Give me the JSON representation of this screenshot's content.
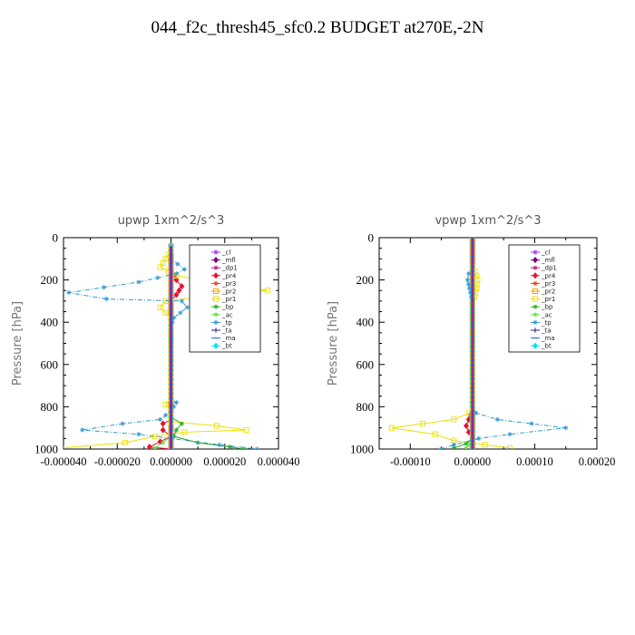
{
  "title": "044_f2c_thresh45_sfc0.2  BUDGET at270E,-2N",
  "chart_data": [
    {
      "type": "line",
      "title": "upwp   1xm^2/s^3",
      "ylabel": "Pressure [hPa]",
      "xlabel": "",
      "ylim": [
        1000,
        0
      ],
      "xlim": [
        -4e-05,
        4e-05
      ],
      "yticks": [
        "0",
        "200",
        "400",
        "600",
        "800",
        "1000"
      ],
      "ytick_values": [
        0,
        200,
        400,
        600,
        800,
        1000
      ],
      "xticks": [
        "-0.000040",
        "-0.000020",
        "0.000000",
        "0.000020",
        "0.000040"
      ],
      "xtick_values": [
        -4e-05,
        -2e-05,
        0,
        2e-05,
        4e-05
      ],
      "legend_position": "top-right",
      "series": [
        {
          "name": "_cl",
          "color": "#9b30ff",
          "marker": "star",
          "points": [
            [
              0,
              40
            ],
            [
              0,
              1000
            ]
          ]
        },
        {
          "name": "_mfl",
          "color": "#800080",
          "marker": "diamond",
          "points": [
            [
              0,
              40
            ],
            [
              0,
              1000
            ]
          ]
        },
        {
          "name": "_dp1",
          "color": "#c71585",
          "marker": "star",
          "points": [
            [
              0,
              100
            ],
            [
              0,
              900
            ]
          ]
        },
        {
          "name": "_pr4",
          "color": "#e8112d",
          "marker": "diamond",
          "points": [
            [
              0,
              160
            ],
            [
              2e-06,
              200
            ],
            [
              4e-06,
              230
            ],
            [
              2e-06,
              270
            ],
            [
              0,
              300
            ],
            [
              0,
              860
            ],
            [
              -3e-06,
              880
            ],
            [
              -3e-06,
              910
            ],
            [
              0,
              940
            ],
            [
              -8e-06,
              990
            ],
            [
              0,
              1000
            ]
          ]
        },
        {
          "name": "_pr3",
          "color": "#ff3300",
          "marker": "star",
          "points": [
            [
              0,
              40
            ],
            [
              0,
              1000
            ]
          ]
        },
        {
          "name": "_pr2",
          "color": "#ff9900",
          "marker": "square",
          "points": [
            [
              0,
              40
            ],
            [
              0,
              1000
            ]
          ]
        },
        {
          "name": "_pr1",
          "color": "#f0e000",
          "marker": "square",
          "points": [
            [
              0,
              60
            ],
            [
              -4e-06,
              140
            ],
            [
              2e-06,
              180
            ],
            [
              1.6e-05,
              210
            ],
            [
              3.6e-05,
              250
            ],
            [
              1.2e-05,
              280
            ],
            [
              -2e-06,
              300
            ],
            [
              -4e-06,
              330
            ],
            [
              0,
              380
            ],
            [
              0,
              760
            ],
            [
              -2e-06,
              790
            ],
            [
              0,
              820
            ],
            [
              0,
              870
            ],
            [
              1.7e-05,
              890
            ],
            [
              2.8e-05,
              910
            ],
            [
              5e-06,
              920
            ],
            [
              -6e-06,
              940
            ],
            [
              -1.7e-05,
              970
            ],
            [
              -4.1e-05,
              995
            ]
          ]
        },
        {
          "name": "_bp",
          "color": "#22aa22",
          "marker": "star",
          "points": [
            [
              0,
              850
            ],
            [
              4e-06,
              880
            ],
            [
              2e-06,
              910
            ],
            [
              1e-06,
              940
            ],
            [
              1e-05,
              970
            ],
            [
              2.2e-05,
              990
            ],
            [
              2.7e-05,
              1000
            ]
          ]
        },
        {
          "name": "_ac",
          "color": "#66dd44",
          "marker": "star",
          "points": [
            [
              0,
              940
            ],
            [
              -3e-06,
              970
            ],
            [
              -6e-06,
              995
            ]
          ]
        },
        {
          "name": "_tp",
          "color": "#3399cc",
          "marker": "star",
          "points": [
            [
              0,
              40
            ],
            [
              0,
              100
            ],
            [
              5e-06,
              150
            ],
            [
              2e-06,
              170
            ],
            [
              -1.2e-05,
              210
            ],
            [
              -3.8e-05,
              260
            ],
            [
              -2.4e-05,
              290
            ],
            [
              4e-06,
              300
            ],
            [
              6e-06,
              330
            ],
            [
              1e-06,
              380
            ],
            [
              0,
              420
            ],
            [
              0,
              760
            ],
            [
              2e-06,
              780
            ],
            [
              0,
              820
            ],
            [
              -4e-06,
              860
            ],
            [
              -1.8e-05,
              880
            ],
            [
              -3.3e-05,
              910
            ],
            [
              -1.2e-05,
              930
            ],
            [
              0,
              950
            ],
            [
              1.8e-05,
              980
            ],
            [
              3.2e-05,
              1000
            ]
          ]
        },
        {
          "name": "_ta",
          "color": "#1a237e",
          "marker": "plus",
          "points": [
            [
              0,
              40
            ],
            [
              0,
              1000
            ]
          ]
        },
        {
          "name": "_ma",
          "color": "#2277dd",
          "marker": "dash",
          "points": [
            [
              0,
              40
            ],
            [
              0,
              1000
            ]
          ]
        },
        {
          "name": "_bt",
          "color": "#00e5e5",
          "marker": "diamond",
          "points": [
            [
              0,
              40
            ],
            [
              0,
              1000
            ]
          ]
        }
      ]
    },
    {
      "type": "line",
      "title": "vpwp   1xm^2/s^3",
      "ylabel": "Pressure [hPa]",
      "xlabel": "",
      "ylim": [
        1000,
        0
      ],
      "xlim": [
        -0.00015,
        0.0002
      ],
      "yticks": [
        "0",
        "200",
        "400",
        "600",
        "800",
        "1000"
      ],
      "ytick_values": [
        0,
        200,
        400,
        600,
        800,
        1000
      ],
      "xticks": [
        "-0.00010",
        "0.00000",
        "0.00010",
        "0.00020"
      ],
      "xtick_values": [
        -0.0001,
        0,
        0.0001,
        0.0002
      ],
      "legend_position": "top-right",
      "series": [
        {
          "name": "_cl",
          "color": "#9b30ff",
          "marker": "star",
          "points": [
            [
              0,
              0
            ],
            [
              0,
              1000
            ]
          ]
        },
        {
          "name": "_mfl",
          "color": "#800080",
          "marker": "diamond",
          "points": [
            [
              0,
              0
            ],
            [
              0,
              1000
            ]
          ]
        },
        {
          "name": "_dp1",
          "color": "#c71585",
          "marker": "star",
          "points": [
            [
              0,
              0
            ],
            [
              0,
              1000
            ]
          ]
        },
        {
          "name": "_pr4",
          "color": "#e8112d",
          "marker": "diamond",
          "points": [
            [
              0,
              820
            ],
            [
              -6e-06,
              860
            ],
            [
              -1e-05,
              890
            ],
            [
              -6e-06,
              920
            ],
            [
              0,
              950
            ],
            [
              0,
              1000
            ]
          ]
        },
        {
          "name": "_pr3",
          "color": "#ff3300",
          "marker": "star",
          "points": [
            [
              0,
              0
            ],
            [
              0,
              1000
            ]
          ]
        },
        {
          "name": "_pr2",
          "color": "#ff9900",
          "marker": "square",
          "points": [
            [
              0,
              0
            ],
            [
              0,
              1000
            ]
          ]
        },
        {
          "name": "_pr1",
          "color": "#f0e000",
          "marker": "square",
          "points": [
            [
              0,
              140
            ],
            [
              4e-06,
              160
            ],
            [
              8e-06,
              200
            ],
            [
              6e-06,
              240
            ],
            [
              3e-06,
              280
            ],
            [
              0,
              300
            ],
            [
              0,
              800
            ],
            [
              -5e-06,
              830
            ],
            [
              -3e-05,
              860
            ],
            [
              -0.00013,
              900
            ],
            [
              -6e-05,
              930
            ],
            [
              -3e-05,
              960
            ],
            [
              2e-05,
              980
            ],
            [
              6e-05,
              995
            ]
          ]
        },
        {
          "name": "_bp",
          "color": "#22aa22",
          "marker": "star",
          "points": [
            [
              0,
              950
            ],
            [
              -1e-05,
              975
            ],
            [
              -3e-05,
              995
            ]
          ]
        },
        {
          "name": "_ac",
          "color": "#66dd44",
          "marker": "star",
          "points": [
            [
              0,
              950
            ],
            [
              -5e-06,
              980
            ],
            [
              -1e-05,
              995
            ]
          ]
        },
        {
          "name": "_tp",
          "color": "#3399cc",
          "marker": "star",
          "points": [
            [
              0,
              140
            ],
            [
              -6e-06,
              170
            ],
            [
              -8e-06,
              200
            ],
            [
              -5e-06,
              240
            ],
            [
              -2e-06,
              280
            ],
            [
              0,
              300
            ],
            [
              0,
              800
            ],
            [
              6e-06,
              830
            ],
            [
              4e-05,
              860
            ],
            [
              0.00015,
              900
            ],
            [
              6e-05,
              930
            ],
            [
              1e-05,
              950
            ],
            [
              -3e-05,
              980
            ],
            [
              -5e-05,
              1000
            ]
          ]
        },
        {
          "name": "_ta",
          "color": "#1a237e",
          "marker": "plus",
          "points": [
            [
              0,
              0
            ],
            [
              0,
              1000
            ]
          ]
        },
        {
          "name": "_ma",
          "color": "#2277dd",
          "marker": "dash",
          "points": [
            [
              0,
              0
            ],
            [
              0,
              1000
            ]
          ]
        },
        {
          "name": "_bt",
          "color": "#00e5e5",
          "marker": "diamond",
          "points": [
            [
              0,
              0
            ],
            [
              0,
              1000
            ]
          ]
        }
      ]
    }
  ]
}
